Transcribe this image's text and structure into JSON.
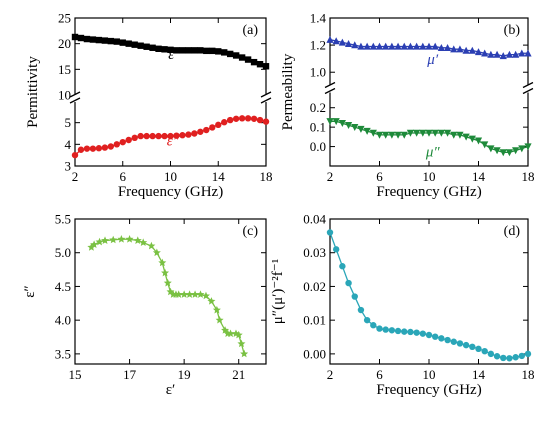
{
  "chart_data": [
    {
      "id": "a",
      "panel_label": "(a)",
      "type": "line",
      "xlabel": "Frequency (GHz)",
      "ylabel": "Permittivity",
      "x_ticks": [
        "2",
        "6",
        "10",
        "14",
        "18"
      ],
      "xlim": [
        2,
        18
      ],
      "axis_break": true,
      "upper_segment": {
        "ylim": [
          10,
          25
        ],
        "y_ticks": [
          "10",
          "15",
          "20",
          "25"
        ]
      },
      "lower_segment": {
        "ylim": [
          3,
          6
        ],
        "y_ticks": [
          "3",
          "4",
          "5"
        ]
      },
      "series": [
        {
          "name": "ε′",
          "segment": "upper",
          "color": "#000000",
          "marker": "square",
          "x": [
            2,
            2.5,
            3,
            3.5,
            4,
            4.5,
            5,
            5.5,
            6,
            6.5,
            7,
            7.5,
            8,
            8.5,
            9,
            9.5,
            10,
            10.5,
            11,
            11.5,
            12,
            12.5,
            13,
            13.5,
            14,
            14.5,
            15,
            15.5,
            16,
            16.5,
            17,
            17.5,
            18
          ],
          "values": [
            21.3,
            21.1,
            20.9,
            20.8,
            20.7,
            20.6,
            20.5,
            20.4,
            20.2,
            20.0,
            19.8,
            19.6,
            19.4,
            19.2,
            19.0,
            18.9,
            18.8,
            18.7,
            18.7,
            18.7,
            18.7,
            18.7,
            18.6,
            18.6,
            18.5,
            18.3,
            18.0,
            17.7,
            17.3,
            16.9,
            16.4,
            16.0,
            15.6
          ]
        },
        {
          "name": "ε″",
          "segment": "lower",
          "color": "#e02020",
          "marker": "circle",
          "x": [
            2,
            2.5,
            3,
            3.5,
            4,
            4.5,
            5,
            5.5,
            6,
            6.5,
            7,
            7.5,
            8,
            8.5,
            9,
            9.5,
            10,
            10.5,
            11,
            11.5,
            12,
            12.5,
            13,
            13.5,
            14,
            14.5,
            15,
            15.5,
            16,
            16.5,
            17,
            17.5,
            18
          ],
          "values": [
            3.5,
            3.75,
            3.8,
            3.8,
            3.82,
            3.85,
            3.9,
            4.0,
            4.1,
            4.2,
            4.3,
            4.38,
            4.38,
            4.38,
            4.38,
            4.38,
            4.38,
            4.4,
            4.42,
            4.45,
            4.5,
            4.58,
            4.66,
            4.78,
            4.9,
            5.02,
            5.12,
            5.18,
            5.2,
            5.2,
            5.18,
            5.12,
            5.05
          ]
        }
      ]
    },
    {
      "id": "b",
      "panel_label": "(b)",
      "type": "line",
      "xlabel": "Frequency (GHz)",
      "ylabel": "Permeability",
      "x_ticks": [
        "2",
        "6",
        "10",
        "14",
        "18"
      ],
      "xlim": [
        2,
        18
      ],
      "axis_break": true,
      "upper_segment": {
        "ylim": [
          0.95,
          1.4
        ],
        "y_ticks": [
          "1.0",
          "1.2",
          "1.4"
        ]
      },
      "lower_segment": {
        "ylim": [
          -0.1,
          0.25
        ],
        "y_ticks": [
          "0.0",
          "0.1",
          "0.2"
        ]
      },
      "series": [
        {
          "name": "μ′",
          "segment": "upper",
          "color": "#2b3fb3",
          "marker": "triangle-up",
          "x": [
            2,
            2.5,
            3,
            3.5,
            4,
            4.5,
            5,
            5.5,
            6,
            6.5,
            7,
            7.5,
            8,
            8.5,
            9,
            9.5,
            10,
            10.5,
            11,
            11.5,
            12,
            12.5,
            13,
            13.5,
            14,
            14.5,
            15,
            15.5,
            16,
            16.5,
            17,
            17.5,
            18
          ],
          "values": [
            1.24,
            1.23,
            1.22,
            1.21,
            1.2,
            1.19,
            1.19,
            1.19,
            1.19,
            1.19,
            1.19,
            1.19,
            1.19,
            1.19,
            1.19,
            1.19,
            1.19,
            1.19,
            1.18,
            1.18,
            1.17,
            1.17,
            1.16,
            1.16,
            1.15,
            1.14,
            1.13,
            1.13,
            1.12,
            1.13,
            1.13,
            1.14,
            1.14
          ]
        },
        {
          "name": "μ″",
          "segment": "lower",
          "color": "#1e8a3a",
          "marker": "triangle-down",
          "x": [
            2,
            2.5,
            3,
            3.5,
            4,
            4.5,
            5,
            5.5,
            6,
            6.5,
            7,
            7.5,
            8,
            8.5,
            9,
            9.5,
            10,
            10.5,
            11,
            11.5,
            12,
            12.5,
            13,
            13.5,
            14,
            14.5,
            15,
            15.5,
            16,
            16.5,
            17,
            17.5,
            18
          ],
          "values": [
            0.13,
            0.13,
            0.12,
            0.11,
            0.1,
            0.09,
            0.08,
            0.07,
            0.06,
            0.06,
            0.06,
            0.06,
            0.06,
            0.07,
            0.07,
            0.07,
            0.07,
            0.07,
            0.07,
            0.07,
            0.06,
            0.06,
            0.05,
            0.04,
            0.03,
            0.01,
            -0.01,
            -0.02,
            -0.03,
            -0.03,
            -0.02,
            -0.01,
            0.0
          ]
        }
      ]
    },
    {
      "id": "c",
      "panel_label": "(c)",
      "type": "line",
      "xlabel": "ε′",
      "ylabel": "ε″",
      "x_ticks": [
        "15",
        "17",
        "19",
        "21"
      ],
      "y_ticks": [
        "3.5",
        "4.0",
        "4.5",
        "5.0",
        "5.5"
      ],
      "xlim": [
        15,
        22
      ],
      "ylim": [
        3.35,
        5.5
      ],
      "series": [
        {
          "color": "#7ac143",
          "marker": "star",
          "x": [
            15.6,
            15.7,
            15.9,
            16.1,
            16.4,
            16.7,
            17.0,
            17.3,
            17.5,
            17.8,
            18.0,
            18.2,
            18.3,
            18.4,
            18.5,
            18.6,
            18.7,
            18.8,
            19.0,
            19.2,
            19.4,
            19.6,
            19.8,
            20.0,
            20.2,
            20.3,
            20.5,
            20.6,
            20.7,
            20.9,
            21.0,
            21.1,
            21.2
          ],
          "values": [
            5.08,
            5.12,
            5.16,
            5.18,
            5.19,
            5.2,
            5.2,
            5.18,
            5.15,
            5.1,
            5.0,
            4.85,
            4.7,
            4.55,
            4.42,
            4.38,
            4.38,
            4.38,
            4.38,
            4.38,
            4.38,
            4.38,
            4.36,
            4.28,
            4.15,
            4.0,
            3.85,
            3.8,
            3.8,
            3.8,
            3.78,
            3.65,
            3.5
          ]
        }
      ]
    },
    {
      "id": "d",
      "panel_label": "(d)",
      "type": "line",
      "xlabel": "Frequency (GHz)",
      "ylabel": "μ″(μ′)⁻²f⁻¹",
      "x_ticks": [
        "2",
        "6",
        "10",
        "14",
        "18"
      ],
      "y_ticks": [
        "0.00",
        "0.01",
        "0.02",
        "0.03",
        "0.04"
      ],
      "xlim": [
        2,
        18
      ],
      "ylim": [
        -0.003,
        0.04
      ],
      "series": [
        {
          "color": "#2aa6b8",
          "marker": "circle",
          "x": [
            2,
            2.5,
            3,
            3.5,
            4,
            4.5,
            5,
            5.5,
            6,
            6.5,
            7,
            7.5,
            8,
            8.5,
            9,
            9.5,
            10,
            10.5,
            11,
            11.5,
            12,
            12.5,
            13,
            13.5,
            14,
            14.5,
            15,
            15.5,
            16,
            16.5,
            17,
            17.5,
            18
          ],
          "values": [
            0.036,
            0.031,
            0.026,
            0.021,
            0.017,
            0.013,
            0.01,
            0.0085,
            0.0075,
            0.0072,
            0.007,
            0.0068,
            0.0066,
            0.0065,
            0.0063,
            0.006,
            0.0056,
            0.0051,
            0.0046,
            0.0041,
            0.0036,
            0.0031,
            0.0026,
            0.0021,
            0.0015,
            0.0008,
            0.0,
            -0.0007,
            -0.0012,
            -0.0013,
            -0.001,
            -0.0006,
            0.0
          ]
        }
      ]
    }
  ]
}
